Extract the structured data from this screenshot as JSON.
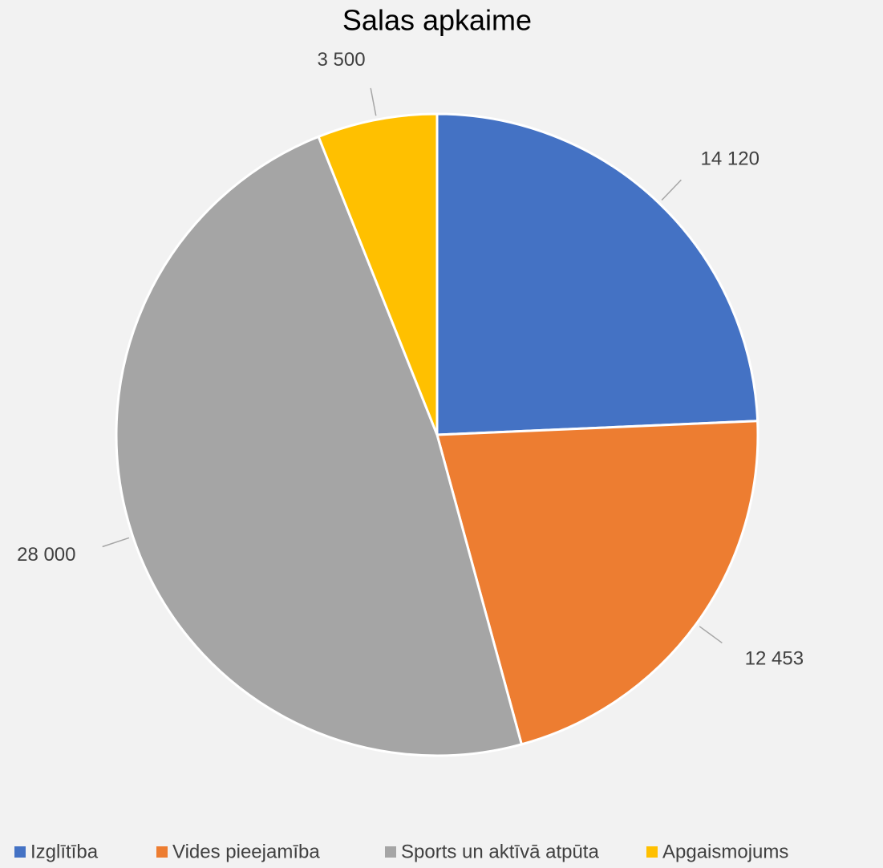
{
  "chart_data": {
    "type": "pie",
    "title": "Salas apkaime",
    "categories": [
      "Izglītība",
      "Vides pieejamība",
      "Sports un aktīvā atpūta",
      "Apgaismojums"
    ],
    "values": [
      14120,
      12453,
      28000,
      3500
    ],
    "value_labels": [
      "14 120",
      "12 453",
      "28 000",
      "3 500"
    ],
    "colors": [
      "#4472c4",
      "#ed7d31",
      "#a5a5a5",
      "#ffc000"
    ],
    "legend": "bottom"
  }
}
